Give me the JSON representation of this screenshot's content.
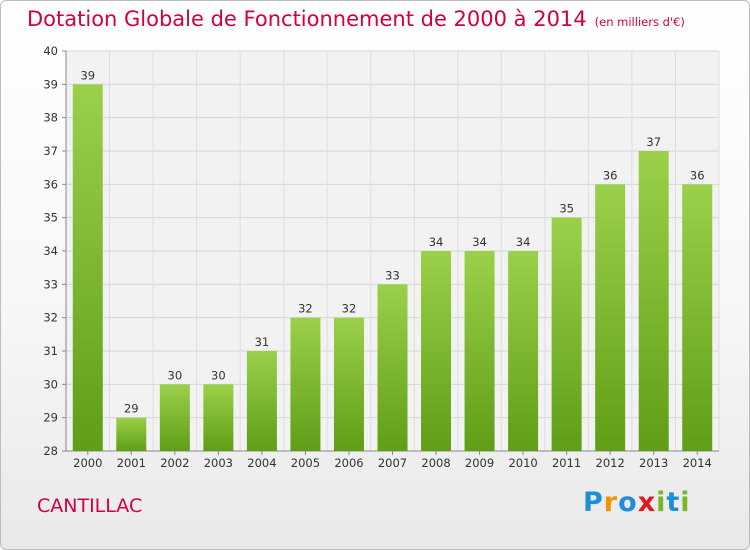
{
  "chart_data": {
    "type": "bar",
    "title": "Dotation Globale de Fonctionnement de 2000 à 2014",
    "subtitle": "(en milliers d'€)",
    "categories": [
      "2000",
      "2001",
      "2002",
      "2003",
      "2004",
      "2005",
      "2006",
      "2007",
      "2008",
      "2009",
      "2010",
      "2011",
      "2012",
      "2013",
      "2014"
    ],
    "values": [
      39,
      29,
      30,
      30,
      31,
      32,
      32,
      33,
      34,
      34,
      34,
      35,
      36,
      37,
      36
    ],
    "ylim": [
      28,
      40
    ],
    "yticks": [
      28,
      29,
      30,
      31,
      32,
      33,
      34,
      35,
      36,
      37,
      38,
      39,
      40
    ],
    "grid": true,
    "colors": {
      "bar_light": "#9bd04a",
      "bar_dark": "#5f9e16",
      "title": "#d3003f"
    }
  },
  "footer": {
    "commune": "CANTILLAC",
    "logo_letters": [
      "P",
      "r",
      "o",
      "x",
      "i",
      "t",
      "i"
    ],
    "logo_colors": [
      "#1e8fd6",
      "#f29400",
      "#1e8fd6",
      "#e2161b",
      "#77b82a",
      "#1e8fd6",
      "#77b82a"
    ]
  }
}
